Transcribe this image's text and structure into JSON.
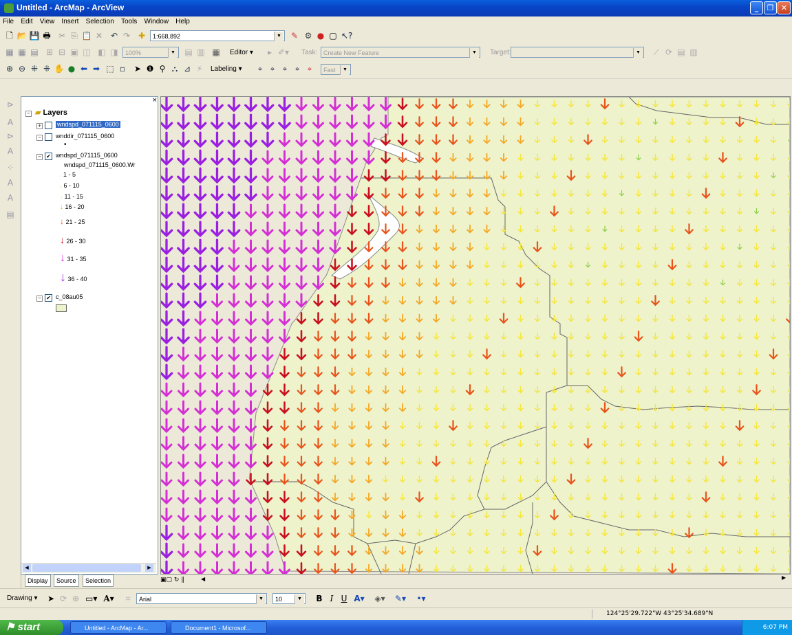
{
  "window": {
    "title": "Untitled - ArcMap - ArcView"
  },
  "menu": [
    "File",
    "Edit",
    "View",
    "Insert",
    "Selection",
    "Tools",
    "Window",
    "Help"
  ],
  "standard_toolbar": {
    "scale": "1:668,892"
  },
  "editor_toolbar": {
    "editor_label": "Editor ▾",
    "task_label": "Task:",
    "task_value": "Create New Feature",
    "target_label": "Target:",
    "zoom_value": "100%"
  },
  "tools_toolbar": {
    "labeling_label": "Labeling ▾",
    "fast_value": "Fast"
  },
  "toc": {
    "root": "Layers",
    "layers": [
      {
        "name": "wndspd_071115_0600",
        "checked": false,
        "selected": true
      },
      {
        "name": "wnddir_071115_0600",
        "checked": false,
        "selected": false
      },
      {
        "name": "wndspd_071115_0600",
        "checked": true,
        "selected": false,
        "field": "wndspd_071115_0600.Wr"
      },
      {
        "name": "c_08au05",
        "checked": true,
        "selected": false
      }
    ],
    "legend": [
      {
        "label": "1 - 5",
        "color": "#c6e57a"
      },
      {
        "label": "6 - 10",
        "color": "#8fcf4a"
      },
      {
        "label": "11 - 15",
        "color": "#f5e63c"
      },
      {
        "label": "16 - 20",
        "color": "#f5a623"
      },
      {
        "label": "21 - 25",
        "color": "#e8541b"
      },
      {
        "label": "26 - 30",
        "color": "#c8101e"
      },
      {
        "label": "31 - 35",
        "color": "#d42fd4"
      },
      {
        "label": "36 - 40",
        "color": "#9a1fe0"
      }
    ],
    "land_color": "#eef3cc",
    "tabs": [
      "Display",
      "Source",
      "Selection"
    ]
  },
  "drawing_toolbar": {
    "drawing_label": "Drawing ▾",
    "font": "Arial",
    "font_size": "10",
    "bold": "B",
    "italic": "I",
    "underline": "U"
  },
  "status": {
    "coordinates": "124°25'29.722\"W  43°25'34.689\"N"
  },
  "taskbar": {
    "start": "start",
    "items": [
      "Untitled - ArcMap - Ar...",
      "Document1 - Microsof..."
    ],
    "clock": "6:07 PM"
  }
}
